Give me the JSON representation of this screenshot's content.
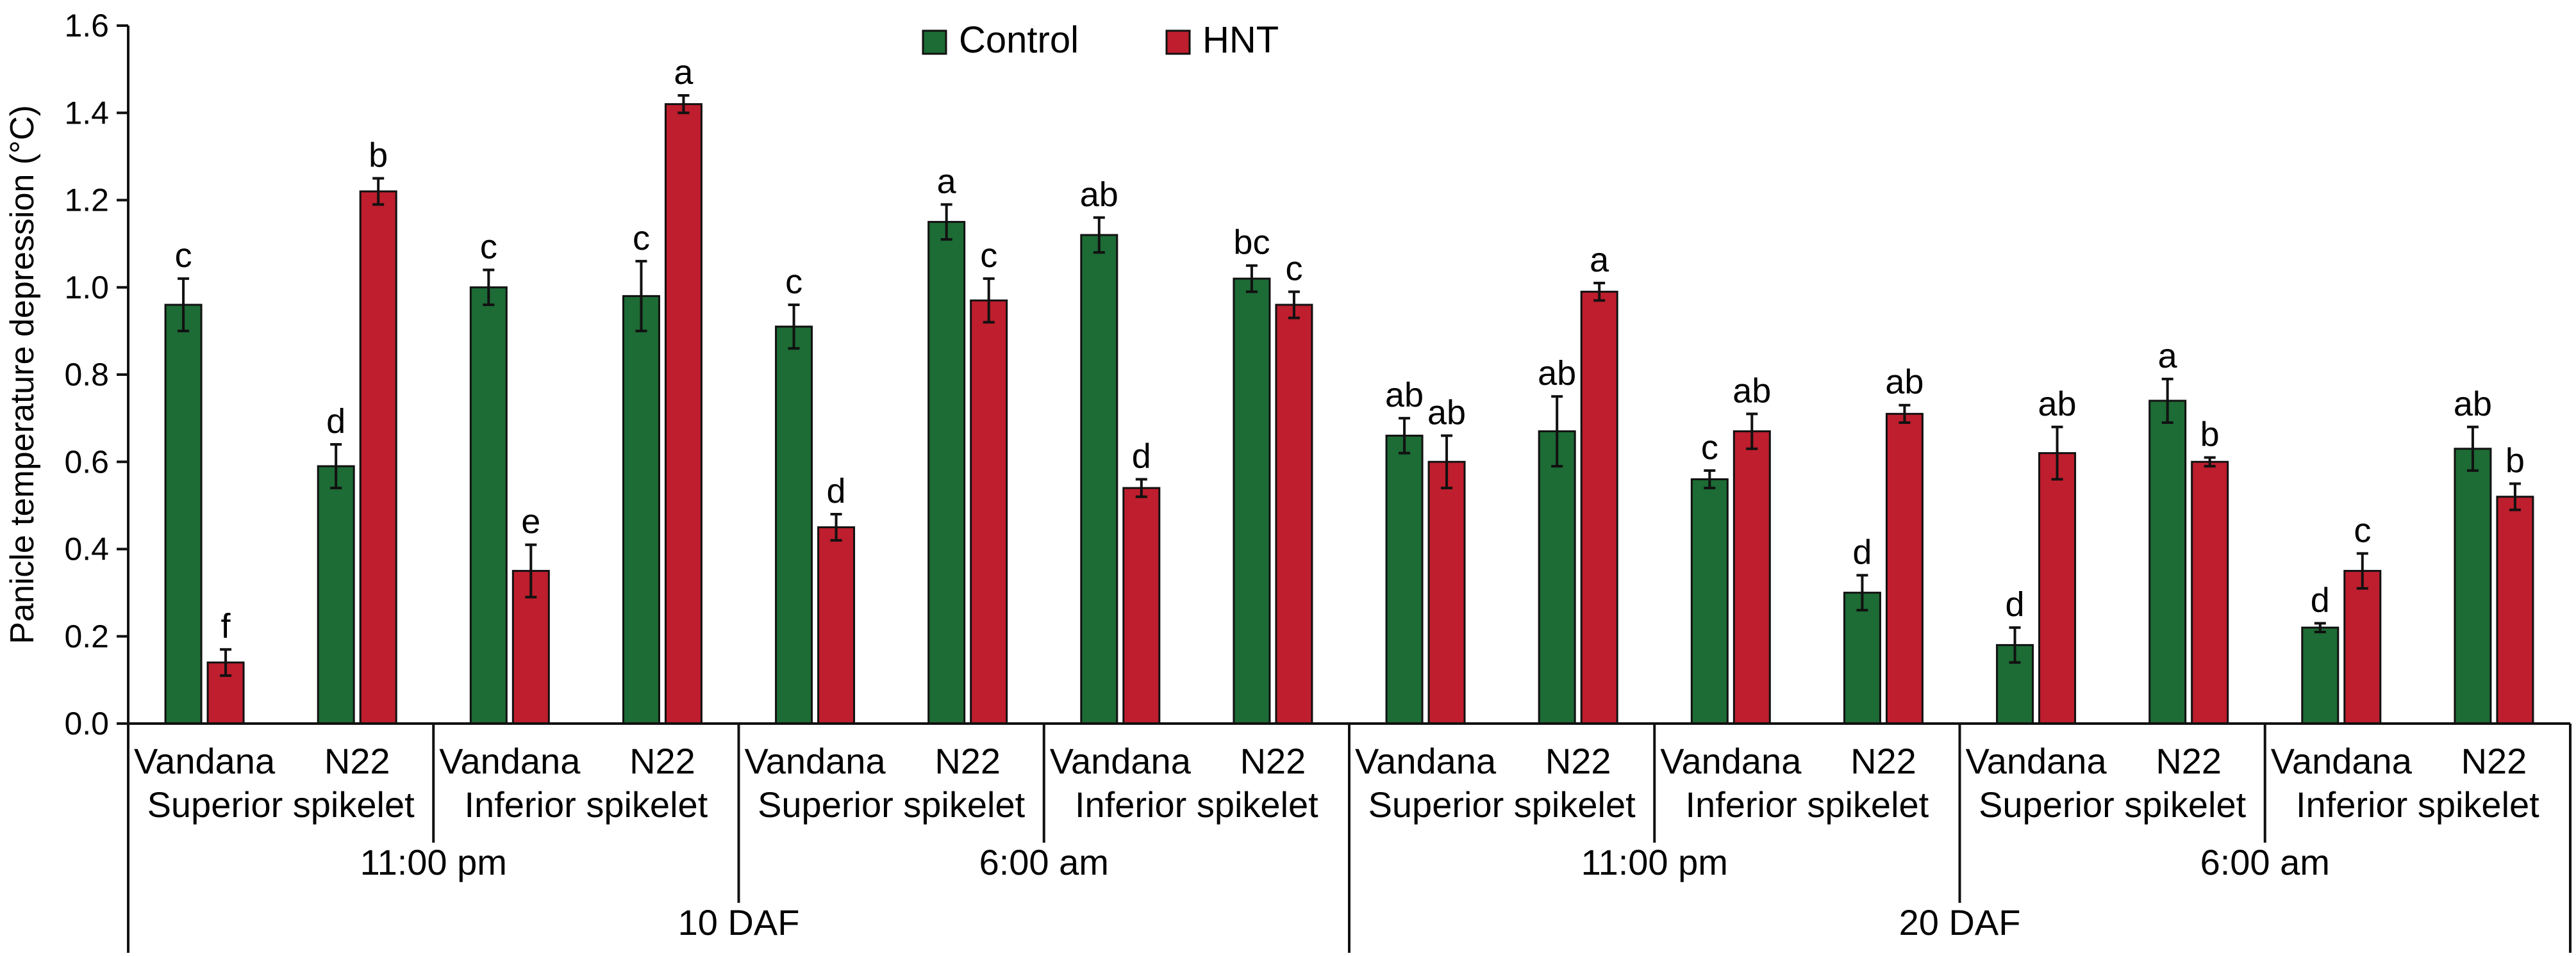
{
  "chart_data": {
    "type": "bar",
    "title": "",
    "xlabel": "",
    "ylabel": "Panicle temperature depression (°C)",
    "ylim": [
      0,
      1.6
    ],
    "yticks": [
      "0.0",
      "0.2",
      "0.4",
      "0.6",
      "0.8",
      "1.0",
      "1.2",
      "1.4",
      "1.6"
    ],
    "grid": false,
    "legend_position": "top-center",
    "series": [
      {
        "name": "Control",
        "color": "#1d6b35",
        "values": [
          0.96,
          0.59,
          1.0,
          0.98,
          0.91,
          1.15,
          1.12,
          1.02,
          0.66,
          0.67,
          0.56,
          0.3,
          0.18,
          0.74,
          0.22,
          0.63
        ],
        "errors": [
          0.06,
          0.05,
          0.04,
          0.08,
          0.05,
          0.04,
          0.04,
          0.03,
          0.04,
          0.08,
          0.02,
          0.04,
          0.04,
          0.05,
          0.01,
          0.05
        ],
        "labels": [
          "c",
          "d",
          "c",
          "c",
          "c",
          "a",
          "ab",
          "bc",
          "ab",
          "ab",
          "c",
          "d",
          "d",
          "a",
          "d",
          "ab"
        ]
      },
      {
        "name": "HNT",
        "color": "#be1e2d",
        "values": [
          0.14,
          1.22,
          0.35,
          1.42,
          0.45,
          0.97,
          0.54,
          0.96,
          0.6,
          0.99,
          0.67,
          0.71,
          0.62,
          0.6,
          0.35,
          0.52
        ],
        "errors": [
          0.03,
          0.03,
          0.06,
          0.02,
          0.03,
          0.05,
          0.02,
          0.03,
          0.06,
          0.02,
          0.04,
          0.02,
          0.06,
          0.01,
          0.04,
          0.03
        ],
        "labels": [
          "f",
          "b",
          "e",
          "a",
          "d",
          "c",
          "d",
          "c",
          "ab",
          "a",
          "ab",
          "ab",
          "ab",
          "b",
          "c",
          "b"
        ]
      }
    ],
    "categories": [
      "Vandana",
      "N22",
      "Vandana",
      "N22",
      "Vandana",
      "N22",
      "Vandana",
      "N22",
      "Vandana",
      "N22",
      "Vandana",
      "N22",
      "Vandana",
      "N22",
      "Vandana",
      "N22"
    ],
    "spikelet_groups": [
      "Superior spikelet",
      "Inferior spikelet",
      "Superior spikelet",
      "Inferior spikelet",
      "Superior spikelet",
      "Inferior spikelet",
      "Superior spikelet",
      "Inferior spikelet"
    ],
    "time_groups": [
      "11:00 pm",
      "6:00 am",
      "11:00 pm",
      "6:00 am"
    ],
    "stage_groups": [
      "10 DAF",
      "20 DAF"
    ]
  }
}
